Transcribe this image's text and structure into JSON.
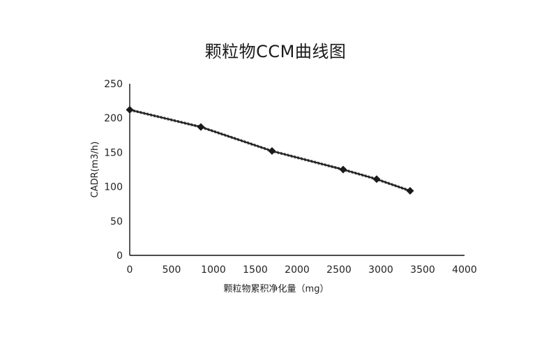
{
  "chart_data": {
    "type": "line",
    "title": "颗粒物CCM曲线图",
    "xlabel": "颗粒物累积净化量（mg）",
    "ylabel": "CADR(m3/h)",
    "xlim": [
      0,
      4000
    ],
    "ylim": [
      0,
      250
    ],
    "xticks": [
      0,
      500,
      1000,
      1500,
      2000,
      2500,
      3000,
      3500,
      4000
    ],
    "yticks": [
      0,
      50,
      100,
      150,
      200,
      250
    ],
    "grid": false,
    "legend": "none",
    "series": [
      {
        "x": [
          0,
          850,
          1700,
          2550,
          2950,
          3350
        ],
        "values": [
          212,
          187,
          152,
          125,
          111,
          94
        ],
        "color": "#1a1a1a",
        "marker": "diamond"
      }
    ]
  }
}
